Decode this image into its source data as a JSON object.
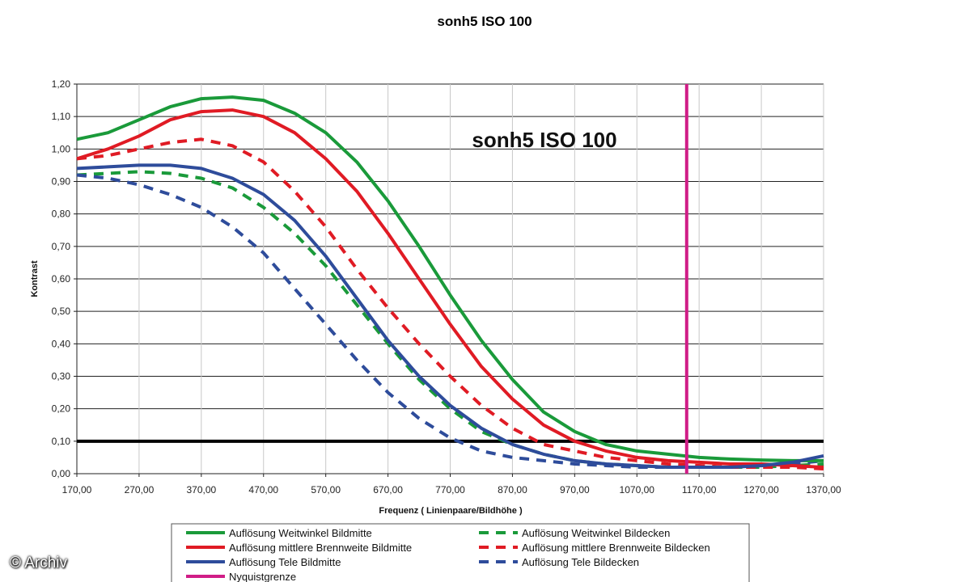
{
  "watermark": "© Archiv",
  "chart_data": {
    "type": "line",
    "title": "sonh5   ISO 100",
    "inner_title": "sonh5   ISO 100",
    "xlabel": "Frequenz ( Linienpaare/Bildhöhe )",
    "ylabel": "Kontrast",
    "xlim": [
      170,
      1370
    ],
    "ylim": [
      0,
      1.2
    ],
    "x_ticks": [
      "170,00",
      "270,00",
      "370,00",
      "470,00",
      "570,00",
      "670,00",
      "770,00",
      "870,00",
      "970,00",
      "1070,00",
      "1170,00",
      "1270,00",
      "1370,00"
    ],
    "y_ticks": [
      "0,00",
      "0,10",
      "0,20",
      "0,30",
      "0,40",
      "0,50",
      "0,60",
      "0,70",
      "0,80",
      "0,90",
      "1,00",
      "1,10",
      "1,20"
    ],
    "grid": "horizontal and vertical",
    "legend_position": "bottom",
    "reference_line": {
      "y": 0.1,
      "color": "#000000"
    },
    "series": [
      {
        "name": "Auflösung Weitwinkel Bildmitte",
        "color": "#1a9a3a",
        "dash": "solid",
        "points": [
          [
            170,
            1.03
          ],
          [
            220,
            1.05
          ],
          [
            270,
            1.09
          ],
          [
            320,
            1.13
          ],
          [
            370,
            1.155
          ],
          [
            420,
            1.16
          ],
          [
            470,
            1.15
          ],
          [
            520,
            1.11
          ],
          [
            570,
            1.05
          ],
          [
            620,
            0.96
          ],
          [
            670,
            0.84
          ],
          [
            720,
            0.7
          ],
          [
            770,
            0.55
          ],
          [
            820,
            0.41
          ],
          [
            870,
            0.29
          ],
          [
            920,
            0.19
          ],
          [
            970,
            0.13
          ],
          [
            1020,
            0.09
          ],
          [
            1070,
            0.07
          ],
          [
            1120,
            0.06
          ],
          [
            1170,
            0.05
          ],
          [
            1220,
            0.045
          ],
          [
            1270,
            0.042
          ],
          [
            1320,
            0.04
          ],
          [
            1370,
            0.04
          ]
        ]
      },
      {
        "name": "Auflösung mittlere Brennweite Bildmitte",
        "color": "#e01b24",
        "dash": "solid",
        "points": [
          [
            170,
            0.97
          ],
          [
            220,
            1.0
          ],
          [
            270,
            1.04
          ],
          [
            320,
            1.09
          ],
          [
            370,
            1.115
          ],
          [
            420,
            1.12
          ],
          [
            470,
            1.1
          ],
          [
            520,
            1.05
          ],
          [
            570,
            0.97
          ],
          [
            620,
            0.87
          ],
          [
            670,
            0.74
          ],
          [
            720,
            0.6
          ],
          [
            770,
            0.46
          ],
          [
            820,
            0.33
          ],
          [
            870,
            0.23
          ],
          [
            920,
            0.15
          ],
          [
            970,
            0.1
          ],
          [
            1020,
            0.07
          ],
          [
            1070,
            0.05
          ],
          [
            1120,
            0.04
          ],
          [
            1170,
            0.035
          ],
          [
            1220,
            0.03
          ],
          [
            1270,
            0.03
          ],
          [
            1320,
            0.025
          ],
          [
            1370,
            0.02
          ]
        ]
      },
      {
        "name": "Auflösung Tele Bildmitte",
        "color": "#2e4c9b",
        "dash": "solid",
        "points": [
          [
            170,
            0.94
          ],
          [
            220,
            0.945
          ],
          [
            270,
            0.95
          ],
          [
            320,
            0.95
          ],
          [
            370,
            0.94
          ],
          [
            420,
            0.91
          ],
          [
            470,
            0.86
          ],
          [
            520,
            0.78
          ],
          [
            570,
            0.67
          ],
          [
            620,
            0.54
          ],
          [
            670,
            0.41
          ],
          [
            720,
            0.3
          ],
          [
            770,
            0.21
          ],
          [
            820,
            0.14
          ],
          [
            870,
            0.09
          ],
          [
            920,
            0.06
          ],
          [
            970,
            0.04
          ],
          [
            1020,
            0.03
          ],
          [
            1070,
            0.025
          ],
          [
            1120,
            0.02
          ],
          [
            1170,
            0.02
          ],
          [
            1220,
            0.02
          ],
          [
            1270,
            0.025
          ],
          [
            1320,
            0.035
          ],
          [
            1370,
            0.055
          ]
        ]
      },
      {
        "name": "Nyquistgrenze",
        "color": "#d01d87",
        "dash": "solid",
        "points": [
          [
            1150,
            0
          ],
          [
            1150,
            1.2
          ]
        ]
      },
      {
        "name": "Auflösung Weitwinkel Bildecken",
        "color": "#1a9a3a",
        "dash": "dashed",
        "points": [
          [
            170,
            0.92
          ],
          [
            220,
            0.925
          ],
          [
            270,
            0.93
          ],
          [
            320,
            0.925
          ],
          [
            370,
            0.91
          ],
          [
            420,
            0.88
          ],
          [
            470,
            0.82
          ],
          [
            520,
            0.74
          ],
          [
            570,
            0.64
          ],
          [
            620,
            0.52
          ],
          [
            670,
            0.4
          ],
          [
            720,
            0.29
          ],
          [
            770,
            0.2
          ],
          [
            820,
            0.13
          ],
          [
            870,
            0.09
          ],
          [
            920,
            0.06
          ],
          [
            970,
            0.04
          ],
          [
            1020,
            0.03
          ],
          [
            1070,
            0.025
          ],
          [
            1120,
            0.02
          ],
          [
            1170,
            0.02
          ],
          [
            1220,
            0.02
          ],
          [
            1270,
            0.02
          ],
          [
            1320,
            0.025
          ],
          [
            1370,
            0.03
          ]
        ]
      },
      {
        "name": "Auflösung mittlere Brennweite Bildecken",
        "color": "#e01b24",
        "dash": "dashed",
        "points": [
          [
            170,
            0.97
          ],
          [
            220,
            0.98
          ],
          [
            270,
            1.0
          ],
          [
            320,
            1.02
          ],
          [
            370,
            1.03
          ],
          [
            420,
            1.01
          ],
          [
            470,
            0.96
          ],
          [
            520,
            0.87
          ],
          [
            570,
            0.76
          ],
          [
            620,
            0.63
          ],
          [
            670,
            0.51
          ],
          [
            720,
            0.4
          ],
          [
            770,
            0.3
          ],
          [
            820,
            0.21
          ],
          [
            870,
            0.14
          ],
          [
            920,
            0.09
          ],
          [
            970,
            0.07
          ],
          [
            1020,
            0.05
          ],
          [
            1070,
            0.04
          ],
          [
            1120,
            0.03
          ],
          [
            1170,
            0.025
          ],
          [
            1220,
            0.02
          ],
          [
            1270,
            0.02
          ],
          [
            1320,
            0.02
          ],
          [
            1370,
            0.015
          ]
        ]
      },
      {
        "name": "Auflösung Tele Bildecken",
        "color": "#2e4c9b",
        "dash": "dashed",
        "points": [
          [
            170,
            0.92
          ],
          [
            220,
            0.91
          ],
          [
            270,
            0.89
          ],
          [
            320,
            0.86
          ],
          [
            370,
            0.82
          ],
          [
            420,
            0.76
          ],
          [
            470,
            0.68
          ],
          [
            520,
            0.57
          ],
          [
            570,
            0.46
          ],
          [
            620,
            0.35
          ],
          [
            670,
            0.25
          ],
          [
            720,
            0.17
          ],
          [
            770,
            0.11
          ],
          [
            820,
            0.07
          ],
          [
            870,
            0.05
          ],
          [
            920,
            0.04
          ],
          [
            970,
            0.03
          ],
          [
            1020,
            0.025
          ],
          [
            1070,
            0.02
          ],
          [
            1120,
            0.02
          ],
          [
            1170,
            0.02
          ],
          [
            1220,
            0.02
          ],
          [
            1270,
            0.025
          ],
          [
            1320,
            0.03
          ],
          [
            1370,
            0.04
          ]
        ]
      }
    ]
  }
}
